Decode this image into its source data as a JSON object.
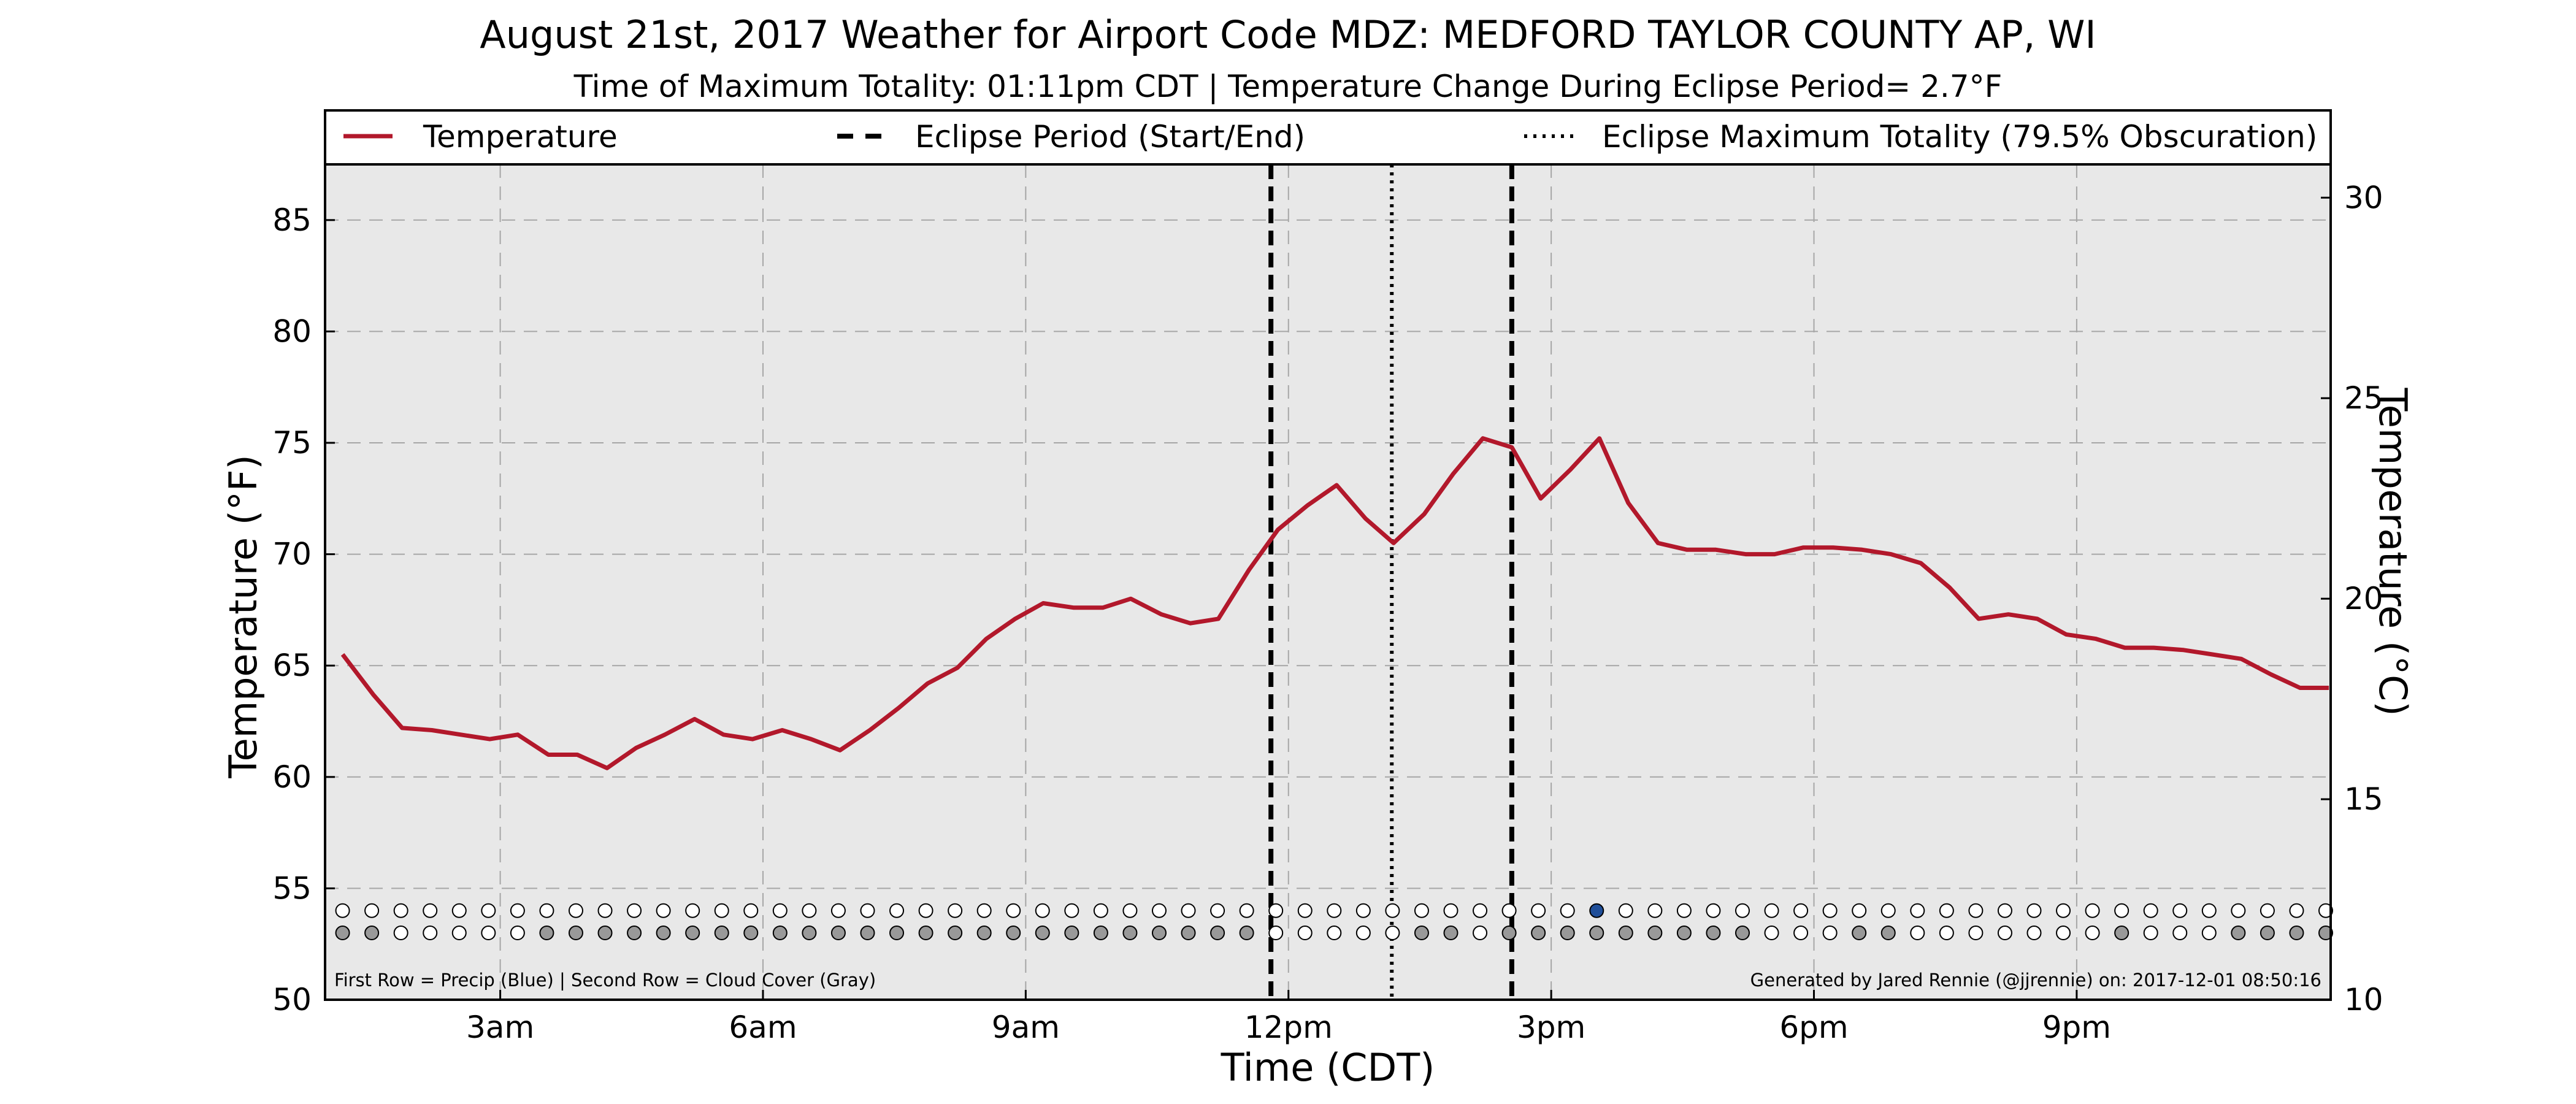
{
  "title": "August 21st, 2017 Weather for Airport Code MDZ: MEDFORD TAYLOR COUNTY AP, WI",
  "subtitle": "Time of Maximum Totality: 01:11pm CDT | Temperature Change During Eclipse Period= 2.7°F",
  "footnote_left": "First Row = Precip (Blue) | Second Row = Cloud Cover (Gray)",
  "footnote_right": "Generated by Jared Rennie (@jjrennie) on: 2017-12-01 08:50:16",
  "colors": {
    "temperature": "#b2182b",
    "plot_bg": "#e8e8e8",
    "precip": "#1f4e99",
    "cloud": "#999999",
    "empty_marker": "#ffffff"
  },
  "legend": {
    "position": "top",
    "temperature": "Temperature",
    "eclipse_period": "Eclipse Period (Start/End)",
    "eclipse_max": "Eclipse Maximum Totality (79.5% Obscuration)"
  },
  "chart_data": {
    "type": "line",
    "xlabel": "Time (CDT)",
    "ylabel": "Temperature (°F)",
    "ylabel_right": "Temperature (°C)",
    "xlim": [
      1.0,
      23.9
    ],
    "ylim": [
      50,
      87.5
    ],
    "ylim_right": [
      10,
      30.83
    ],
    "grid": true,
    "x_ticks": [
      3,
      6,
      9,
      12,
      15,
      18,
      21
    ],
    "x_tick_labels": [
      "3am",
      "6am",
      "9am",
      "12pm",
      "3pm",
      "6pm",
      "9pm"
    ],
    "y_ticks": [
      50,
      55,
      60,
      65,
      70,
      75,
      80,
      85
    ],
    "y_tick_labels": [
      "50",
      "55",
      "60",
      "65",
      "70",
      "75",
      "80",
      "85"
    ],
    "y_ticks_right": [
      10,
      15,
      20,
      25,
      30
    ],
    "y_tick_labels_right": [
      "10",
      "15",
      "20",
      "25",
      "30"
    ],
    "eclipse_start": 11.8,
    "eclipse_end": 14.55,
    "eclipse_max": 13.18,
    "series": [
      {
        "name": "Temperature",
        "x": [
          1.2,
          1.55,
          1.88,
          2.22,
          2.55,
          2.88,
          3.2,
          3.55,
          3.88,
          4.22,
          4.55,
          4.88,
          5.22,
          5.55,
          5.88,
          6.22,
          6.55,
          6.88,
          7.22,
          7.55,
          7.88,
          8.22,
          8.55,
          8.88,
          9.2,
          9.55,
          9.88,
          10.2,
          10.55,
          10.88,
          11.2,
          11.55,
          11.88,
          12.22,
          12.55,
          12.88,
          13.2,
          13.55,
          13.88,
          14.22,
          14.55,
          14.88,
          15.22,
          15.55,
          15.88,
          16.22,
          16.55,
          16.88,
          17.22,
          17.55,
          17.88,
          18.22,
          18.55,
          18.88,
          19.22,
          19.55,
          19.88,
          20.22,
          20.55,
          20.88,
          21.22,
          21.55,
          21.88,
          22.22,
          22.55,
          22.88,
          23.22,
          23.55,
          23.88
        ],
        "y": [
          65.5,
          63.7,
          62.2,
          62.1,
          61.9,
          61.7,
          61.9,
          61.0,
          61.0,
          60.4,
          61.3,
          61.9,
          62.6,
          61.9,
          61.7,
          62.1,
          61.7,
          61.2,
          62.1,
          63.1,
          64.2,
          64.9,
          66.2,
          67.1,
          67.8,
          67.6,
          67.6,
          68.0,
          67.3,
          66.9,
          67.1,
          69.3,
          71.1,
          72.2,
          73.1,
          71.6,
          70.5,
          71.8,
          73.6,
          75.2,
          74.8,
          72.5,
          73.8,
          75.2,
          72.3,
          70.5,
          70.2,
          70.2,
          70.0,
          70.0,
          70.3,
          70.3,
          70.2,
          70.0,
          69.6,
          68.5,
          67.1,
          67.3,
          67.1,
          66.4,
          66.2,
          65.8,
          65.8,
          65.7,
          65.5,
          65.3,
          64.6,
          64.0,
          64.0
        ]
      }
    ],
    "marker_rows": {
      "x_start": 1.2,
      "x_step": 0.333,
      "count": 69,
      "precip_y": 54.0,
      "cloud_y": 53.0,
      "precip_filled": [
        43
      ],
      "cloud_filled": [
        0,
        1,
        7,
        8,
        9,
        10,
        11,
        12,
        13,
        14,
        15,
        16,
        17,
        18,
        19,
        20,
        21,
        22,
        23,
        24,
        25,
        26,
        27,
        28,
        29,
        30,
        31,
        37,
        38,
        40,
        41,
        42,
        43,
        44,
        45,
        46,
        47,
        48,
        52,
        53,
        61,
        65,
        66,
        67,
        68
      ]
    }
  }
}
